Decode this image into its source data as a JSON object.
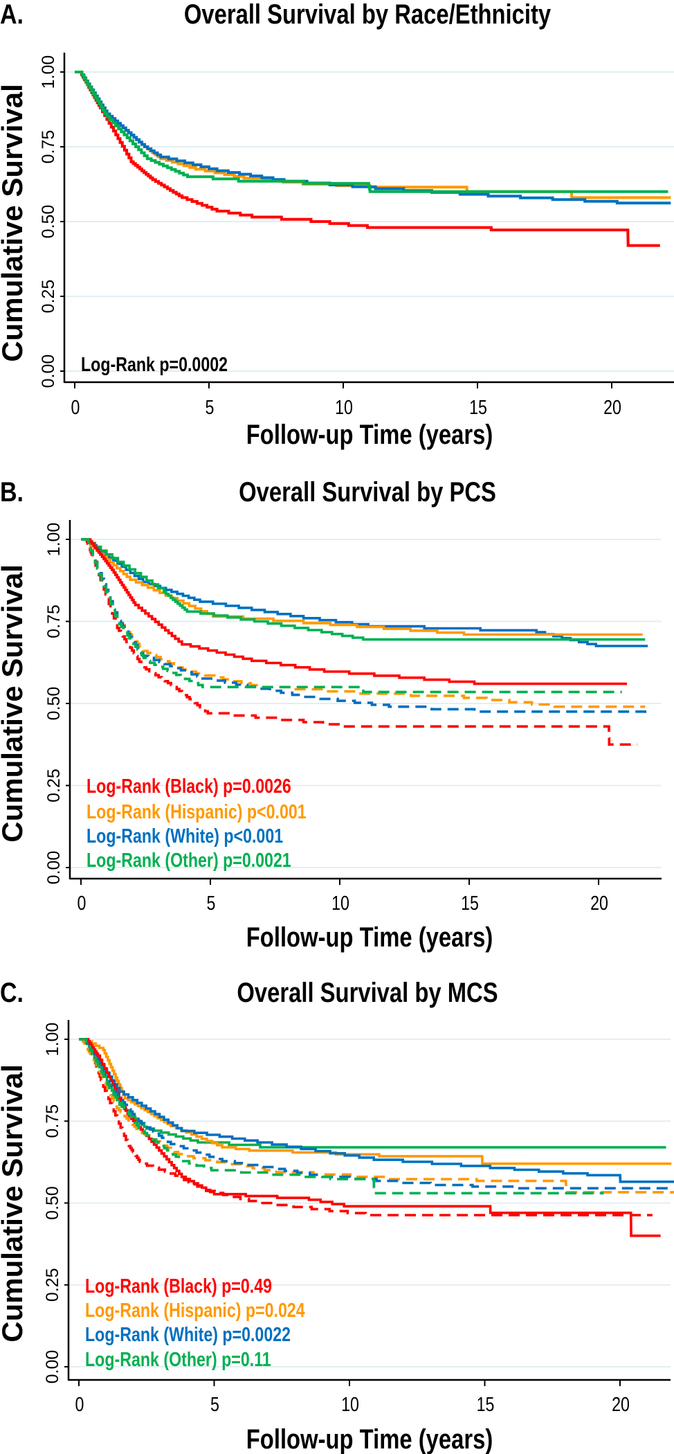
{
  "colors": {
    "Black": "#ff0000",
    "Hispanic": "#ff9900",
    "White": "#0070c0",
    "Other": "#00b050",
    "grid": "#e3eef3",
    "axis": "#000000"
  },
  "chart_data": [
    {
      "type": "line",
      "panel_label": "A.",
      "title": "Overall Survival by Race/Ethnicity",
      "xlabel": "Follow-up Time (years)",
      "ylabel": "Cumulative Survival",
      "xlim": [
        0,
        22.2
      ],
      "ylim": [
        0,
        1
      ],
      "xticks": [
        "0",
        "5",
        "10",
        "15",
        "20"
      ],
      "yticks": [
        "0.00",
        "0.25",
        "0.50",
        "0.75",
        "1.00"
      ],
      "grid": true,
      "annotations": [
        {
          "text": "Log-Rank p=0.0002",
          "color": "#000000"
        }
      ],
      "series": [
        {
          "group": "Black",
          "line": "solid",
          "points": [
            [
              0,
              1
            ],
            [
              0.2,
              1
            ],
            [
              0.95,
              0.88
            ],
            [
              2.1,
              0.7
            ],
            [
              2.9,
              0.64
            ],
            [
              4.0,
              0.58
            ],
            [
              5.3,
              0.535
            ],
            [
              6.6,
              0.515
            ],
            [
              8.8,
              0.5
            ],
            [
              10.9,
              0.48
            ],
            [
              15.5,
              0.48
            ],
            [
              15.51,
              0.472
            ],
            [
              20.6,
              0.472
            ],
            [
              20.61,
              0.42
            ],
            [
              21.8,
              0.42
            ]
          ]
        },
        {
          "group": "Hispanic",
          "line": "solid",
          "points": [
            [
              0,
              1
            ],
            [
              0.2,
              1
            ],
            [
              1.2,
              0.86
            ],
            [
              2.6,
              0.75
            ],
            [
              3.2,
              0.71
            ],
            [
              4.5,
              0.675
            ],
            [
              6.3,
              0.645
            ],
            [
              8.5,
              0.625
            ],
            [
              11.0,
              0.615
            ],
            [
              14.6,
              0.61
            ],
            [
              14.61,
              0.6
            ],
            [
              18.5,
              0.6
            ],
            [
              18.51,
              0.58
            ],
            [
              22.2,
              0.58
            ]
          ]
        },
        {
          "group": "White",
          "line": "solid",
          "points": [
            [
              0,
              1
            ],
            [
              0.2,
              1
            ],
            [
              1.2,
              0.86
            ],
            [
              2.6,
              0.75
            ],
            [
              3.2,
              0.716
            ],
            [
              5.3,
              0.67
            ],
            [
              7.8,
              0.635
            ],
            [
              11.2,
              0.61
            ],
            [
              15.4,
              0.585
            ],
            [
              20.2,
              0.562
            ],
            [
              22.2,
              0.562
            ]
          ]
        },
        {
          "group": "Other",
          "line": "solid",
          "points": [
            [
              0,
              1
            ],
            [
              0.2,
              1
            ],
            [
              1.2,
              0.85
            ],
            [
              2.7,
              0.71
            ],
            [
              4.2,
              0.65
            ],
            [
              6.1,
              0.635
            ],
            [
              10.95,
              0.62
            ],
            [
              11.0,
              0.6
            ],
            [
              22.1,
              0.6
            ]
          ]
        }
      ]
    },
    {
      "type": "line",
      "panel_label": "B.",
      "title": "Overall Survival by PCS",
      "xlabel": "Follow-up Time (years)",
      "ylabel": "Cumulative Survival",
      "xlim": [
        0,
        22.6
      ],
      "ylim": [
        0,
        1
      ],
      "xticks": [
        "0",
        "5",
        "10",
        "15",
        "20"
      ],
      "yticks": [
        "0.00",
        "0.25",
        "0.50",
        "0.75",
        "1.00"
      ],
      "grid": true,
      "annotations": [
        {
          "text": "Log-Rank (Black) p=0.0026",
          "color": "#ff0000"
        },
        {
          "text": "Log-Rank (Hispanic) p<0.001",
          "color": "#ff9900"
        },
        {
          "text": "Log-Rank (White) p<0.001",
          "color": "#0070c0"
        },
        {
          "text": "Log-Rank (Other) p=0.0021",
          "color": "#00b050"
        }
      ],
      "series": [
        {
          "group": "White",
          "line": "solid",
          "points": [
            [
              0,
              1
            ],
            [
              0.1,
              1
            ],
            [
              2.4,
              0.87
            ],
            [
              4.6,
              0.81
            ],
            [
              8.6,
              0.76
            ],
            [
              11.1,
              0.735
            ],
            [
              17.6,
              0.717
            ],
            [
              19.9,
              0.675
            ],
            [
              21.9,
              0.675
            ]
          ]
        },
        {
          "group": "Hispanic",
          "line": "solid",
          "points": [
            [
              0,
              1
            ],
            [
              0.1,
              1
            ],
            [
              1.9,
              0.877
            ],
            [
              5.1,
              0.765
            ],
            [
              8.6,
              0.745
            ],
            [
              14.8,
              0.71
            ],
            [
              21.7,
              0.71
            ]
          ]
        },
        {
          "group": "Other",
          "line": "solid",
          "points": [
            [
              0,
              1
            ],
            [
              0.1,
              1
            ],
            [
              3.2,
              0.84
            ],
            [
              4.1,
              0.78
            ],
            [
              6.7,
              0.75
            ],
            [
              9.3,
              0.717
            ],
            [
              10.9,
              0.695
            ],
            [
              21.8,
              0.695
            ]
          ]
        },
        {
          "group": "Black",
          "line": "solid",
          "points": [
            [
              0,
              1
            ],
            [
              0.3,
              1
            ],
            [
              1.2,
              0.907
            ],
            [
              2.1,
              0.8
            ],
            [
              3.9,
              0.68
            ],
            [
              6.6,
              0.63
            ],
            [
              9.4,
              0.597
            ],
            [
              15.2,
              0.56
            ],
            [
              21.1,
              0.56
            ]
          ]
        },
        {
          "group": "Black",
          "line": "dashed",
          "points": [
            [
              0,
              1
            ],
            [
              0.2,
              1
            ],
            [
              0.5,
              0.935
            ],
            [
              1.4,
              0.73
            ],
            [
              2.4,
              0.61
            ],
            [
              3.6,
              0.55
            ],
            [
              4.9,
              0.47
            ],
            [
              8.6,
              0.443
            ],
            [
              10.1,
              0.43
            ],
            [
              20.4,
              0.43
            ],
            [
              20.41,
              0.375
            ],
            [
              21.5,
              0.375
            ]
          ]
        },
        {
          "group": "Hispanic",
          "line": "dashed",
          "points": [
            [
              0,
              1
            ],
            [
              0.2,
              1
            ],
            [
              1.4,
              0.76
            ],
            [
              2.4,
              0.66
            ],
            [
              4.1,
              0.597
            ],
            [
              6.9,
              0.55
            ],
            [
              10.7,
              0.53
            ],
            [
              14.8,
              0.517
            ],
            [
              18.3,
              0.49
            ],
            [
              21.8,
              0.49
            ]
          ]
        },
        {
          "group": "White",
          "line": "dashed",
          "points": [
            [
              0,
              1
            ],
            [
              0.2,
              1
            ],
            [
              1.4,
              0.76
            ],
            [
              2.4,
              0.645
            ],
            [
              4.7,
              0.576
            ],
            [
              8.6,
              0.52
            ],
            [
              11.9,
              0.49
            ],
            [
              15.2,
              0.475
            ],
            [
              21.8,
              0.47
            ]
          ]
        },
        {
          "group": "Other",
          "line": "dashed",
          "points": [
            [
              0,
              1
            ],
            [
              0.2,
              1
            ],
            [
              1.4,
              0.75
            ],
            [
              2.5,
              0.63
            ],
            [
              4.7,
              0.55
            ],
            [
              10.9,
              0.55
            ],
            [
              10.91,
              0.535
            ],
            [
              20.9,
              0.535
            ]
          ]
        }
      ]
    },
    {
      "type": "line",
      "panel_label": "C.",
      "title": "Overall Survival by MCS",
      "xlabel": "Follow-up Time (years)",
      "ylabel": "Cumulative Survival",
      "xlim": [
        0,
        22.2
      ],
      "ylim": [
        0,
        1
      ],
      "xticks": [
        "0",
        "5",
        "10",
        "15",
        "20"
      ],
      "yticks": [
        "0.00",
        "0.25",
        "0.50",
        "0.75",
        "1.00"
      ],
      "grid": true,
      "annotations": [
        {
          "text": "Log-Rank (Black) p=0.49",
          "color": "#ff0000"
        },
        {
          "text": "Log-Rank (Hispanic) p=0.024",
          "color": "#ff9900"
        },
        {
          "text": "Log-Rank (White) p=0.0022",
          "color": "#0070c0"
        },
        {
          "text": "Log-Rank (Other) p=0.11",
          "color": "#00b050"
        }
      ],
      "series": [
        {
          "group": "Other",
          "line": "solid",
          "points": [
            [
              0,
              1
            ],
            [
              0.2,
              1
            ],
            [
              1.5,
              0.8
            ],
            [
              2.5,
              0.727
            ],
            [
              4.4,
              0.685
            ],
            [
              6.7,
              0.67
            ],
            [
              21.7,
              0.67
            ]
          ]
        },
        {
          "group": "Hispanic",
          "line": "solid",
          "points": [
            [
              0,
              1
            ],
            [
              0.2,
              1
            ],
            [
              0.9,
              0.967
            ],
            [
              1.7,
              0.82
            ],
            [
              3.4,
              0.735
            ],
            [
              5.3,
              0.67
            ],
            [
              6.3,
              0.66
            ],
            [
              11.1,
              0.643
            ],
            [
              14.9,
              0.643
            ],
            [
              14.91,
              0.62
            ],
            [
              21.9,
              0.62
            ]
          ]
        },
        {
          "group": "White",
          "line": "solid",
          "points": [
            [
              0,
              1
            ],
            [
              0.2,
              1
            ],
            [
              1.5,
              0.84
            ],
            [
              3.8,
              0.72
            ],
            [
              6.6,
              0.685
            ],
            [
              10.9,
              0.632
            ],
            [
              15.2,
              0.607
            ],
            [
              18.8,
              0.585
            ],
            [
              20.0,
              0.585
            ],
            [
              20.01,
              0.565
            ],
            [
              22.0,
              0.565
            ]
          ]
        },
        {
          "group": "Black",
          "line": "solid",
          "points": [
            [
              0,
              1
            ],
            [
              0.3,
              1
            ],
            [
              0.7,
              0.95
            ],
            [
              1.8,
              0.77
            ],
            [
              2.5,
              0.705
            ],
            [
              3.8,
              0.58
            ],
            [
              5.0,
              0.527
            ],
            [
              8.5,
              0.51
            ],
            [
              9.8,
              0.49
            ],
            [
              15.2,
              0.49
            ],
            [
              15.21,
              0.47
            ],
            [
              20.4,
              0.47
            ],
            [
              20.41,
              0.4
            ],
            [
              21.5,
              0.4
            ]
          ]
        },
        {
          "group": "Black",
          "line": "dashed",
          "points": [
            [
              0,
              1
            ],
            [
              0.3,
              1
            ],
            [
              0.9,
              0.855
            ],
            [
              1.8,
              0.68
            ],
            [
              2.3,
              0.62
            ],
            [
              3.4,
              0.59
            ],
            [
              4.7,
              0.537
            ],
            [
              6.6,
              0.5
            ],
            [
              10.6,
              0.463
            ],
            [
              21.2,
              0.463
            ]
          ]
        },
        {
          "group": "Hispanic",
          "line": "dashed",
          "points": [
            [
              0,
              1
            ],
            [
              0.1,
              1
            ],
            [
              0.6,
              0.93
            ],
            [
              1.4,
              0.79
            ],
            [
              2.2,
              0.72
            ],
            [
              3.8,
              0.643
            ],
            [
              7.3,
              0.594
            ],
            [
              11.4,
              0.573
            ],
            [
              18.0,
              0.562
            ],
            [
              18.01,
              0.533
            ],
            [
              22.0,
              0.533
            ]
          ]
        },
        {
          "group": "White",
          "line": "dashed",
          "points": [
            [
              0,
              1
            ],
            [
              0.2,
              1
            ],
            [
              1.2,
              0.85
            ],
            [
              2.2,
              0.75
            ],
            [
              3.4,
              0.68
            ],
            [
              5.3,
              0.628
            ],
            [
              9.0,
              0.58
            ],
            [
              13.0,
              0.555
            ],
            [
              16.1,
              0.545
            ],
            [
              21.8,
              0.54
            ]
          ]
        },
        {
          "group": "Other",
          "line": "dashed",
          "points": [
            [
              0,
              1
            ],
            [
              0.2,
              1
            ],
            [
              1.2,
              0.84
            ],
            [
              2.3,
              0.72
            ],
            [
              3.8,
              0.628
            ],
            [
              4.9,
              0.6
            ],
            [
              9.3,
              0.573
            ],
            [
              10.9,
              0.573
            ],
            [
              10.91,
              0.53
            ],
            [
              19.4,
              0.53
            ]
          ]
        }
      ]
    }
  ]
}
